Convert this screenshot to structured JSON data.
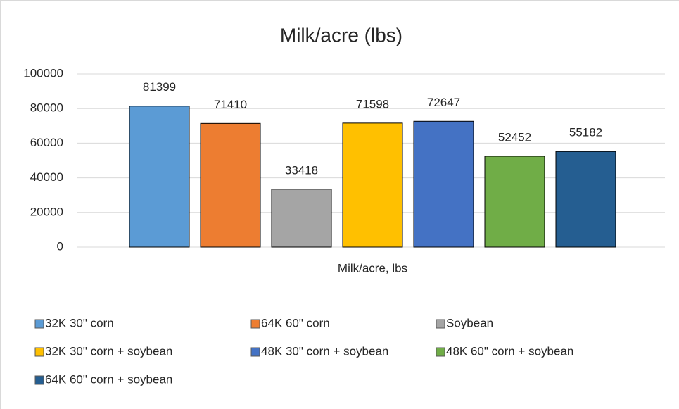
{
  "chart_data": {
    "type": "bar",
    "title": "Milk/acre (lbs)",
    "categories": [
      "Milk/acre, lbs"
    ],
    "series": [
      {
        "name": "32K 30\" corn",
        "color": "#5b9bd5",
        "values": [
          81399
        ]
      },
      {
        "name": "64K 60\" corn",
        "color": "#ed7d31",
        "values": [
          71410
        ]
      },
      {
        "name": "Soybean",
        "color": "#a5a5a5",
        "values": [
          33418
        ]
      },
      {
        "name": "32K 30\" corn + soybean",
        "color": "#ffc000",
        "values": [
          71598
        ]
      },
      {
        "name": "48K 30\" corn + soybean",
        "color": "#4472c4",
        "values": [
          72647
        ]
      },
      {
        "name": "48K 60\" corn + soybean",
        "color": "#70ad47",
        "values": [
          52452
        ]
      },
      {
        "name": "64K 60\" corn + soybean",
        "color": "#255e91",
        "values": [
          55182
        ]
      }
    ],
    "ylim": [
      0,
      100000
    ],
    "yticks": [
      0,
      20000,
      40000,
      60000,
      80000,
      100000
    ],
    "grid": true,
    "legend": "bottom"
  }
}
